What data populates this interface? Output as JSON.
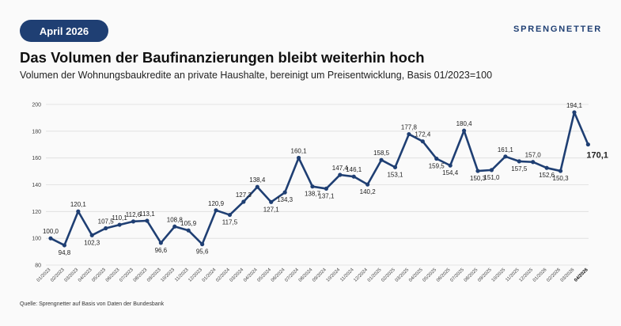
{
  "badge": {
    "label": "April 2026"
  },
  "brand": {
    "name": "SPRENGNETTER"
  },
  "title": "Das Volumen der Baufinanzierungen bleibt weiterhin hoch",
  "subtitle": "Volumen der Wohnungsbaukredite an private Haushalte, bereinigt um Preisentwicklung, Basis 01/2023=100",
  "source": "Quelle: Sprengnetter auf Basis von Daten der Bundesbank",
  "colors": {
    "line": "#1f3f73",
    "badge": "#1f3f73",
    "grid": "#dddddd"
  },
  "chart_data": {
    "type": "line",
    "title": "",
    "xlabel": "",
    "ylabel": "",
    "ylim": [
      80,
      200
    ],
    "yticks": [
      80,
      100,
      120,
      140,
      160,
      180,
      200
    ],
    "grid": true,
    "categories": [
      "01/2023",
      "02/2023",
      "03/2023",
      "04/2023",
      "05/2023",
      "06/2023",
      "07/2023",
      "08/2023",
      "09/2023",
      "10/2023",
      "11/2023",
      "12/2023",
      "01/2024",
      "02/2024",
      "03/2024",
      "04/2024",
      "05/2024",
      "06/2024",
      "07/2024",
      "08/2024",
      "09/2024",
      "10/2024",
      "11/2024",
      "12/2024",
      "01/2025",
      "02/2025",
      "03/2025",
      "04/2025",
      "05/2025",
      "06/2025",
      "07/2025",
      "08/2025",
      "09/2025",
      "10/2025",
      "11/2025",
      "12/2025",
      "01/2026",
      "02/2026",
      "03/2026",
      "04/2026"
    ],
    "values": [
      100.0,
      94.8,
      120.1,
      102.3,
      107.5,
      110.1,
      112.6,
      113.1,
      96.6,
      108.8,
      105.9,
      95.6,
      120.9,
      117.5,
      127.3,
      138.4,
      127.1,
      134.3,
      160.1,
      138.7,
      137.1,
      147.4,
      146.1,
      140.2,
      158.5,
      153.1,
      177.8,
      172.4,
      159.5,
      154.4,
      180.4,
      150.3,
      151.0,
      161.1,
      157.5,
      157.0,
      152.6,
      150.3,
      194.1,
      170.1
    ],
    "value_labels": [
      "100,0",
      "94,8",
      "120,1",
      "102,3",
      "107,5",
      "110,1",
      "112,6",
      "113,1",
      "96,6",
      "108,8",
      "105,9",
      "95,6",
      "120,9",
      "117,5",
      "127,3",
      "138,4",
      "127,1",
      "134,3",
      "160,1",
      "138,7",
      "137,1",
      "147,4",
      "146,1",
      "140,2",
      "158,5",
      "153,1",
      "177,8",
      "172,4",
      "159,5",
      "154,4",
      "180,4",
      "150,3",
      "151,0",
      "161,1",
      "157,5",
      "157,0",
      "152,6",
      "150,3",
      "194,1",
      "170,1"
    ],
    "label_position": [
      "above",
      "below",
      "above",
      "below",
      "above",
      "above",
      "above",
      "above",
      "below",
      "above",
      "above",
      "below",
      "above",
      "below",
      "above",
      "above",
      "below",
      "below",
      "above",
      "below",
      "below",
      "above",
      "above",
      "below",
      "above",
      "below",
      "above",
      "above",
      "below",
      "below",
      "above",
      "below",
      "below",
      "above",
      "below",
      "above",
      "below",
      "below",
      "above",
      "right"
    ]
  }
}
